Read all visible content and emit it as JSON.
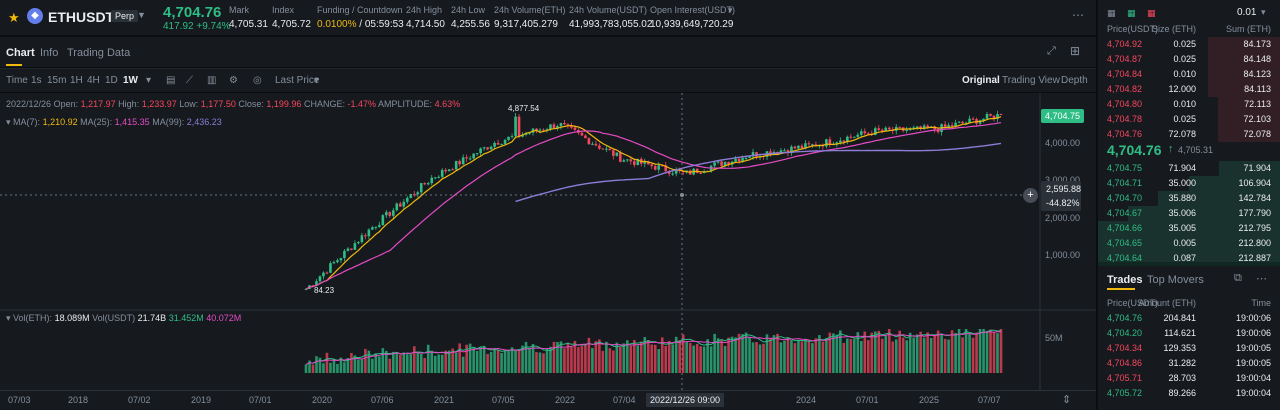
{
  "header": {
    "symbol": "ETHUSDT",
    "contract_badge": "Perp",
    "last_price": "4,704.76",
    "change_line": "417.92 +9.74%",
    "stats": [
      {
        "label": "Mark",
        "value": "4,705.31"
      },
      {
        "label": "Index",
        "value": "4,705.72"
      },
      {
        "label": "Funding / Countdown",
        "value": "0.0100% / 05:59:53"
      },
      {
        "label": "24h High",
        "value": "4,714.50"
      },
      {
        "label": "24h Low",
        "value": "4,255.56"
      },
      {
        "label": "24h Volume(ETH)",
        "value": "9,317,405.279"
      },
      {
        "label": "24h Volume(USDT)",
        "value": "41,993,783,055.02"
      },
      {
        "label": "Open Interest(USDT)",
        "value": "10,939,649,720.29"
      }
    ],
    "funding_rate": "0.0100%",
    "countdown": " / 05:59:53",
    "icons": [
      "star-icon",
      "ethereum-icon",
      "chevron-down-icon",
      "more-icon"
    ]
  },
  "tabs": [
    {
      "label": "Chart",
      "active": true
    },
    {
      "label": "Info",
      "active": false
    },
    {
      "label": "Trading Data",
      "active": false
    }
  ],
  "toolbar": {
    "time_label": "Time",
    "intervals": [
      "1s",
      "15m",
      "1H",
      "4H",
      "1D",
      "1W"
    ],
    "active_interval": "1W",
    "price_type": "Last Price",
    "views": [
      "Original",
      "Trading View",
      "Depth"
    ],
    "active_view": "Original"
  },
  "chart": {
    "ohlc": {
      "date": "2022/12/26",
      "open_label": "Open:",
      "open": "1,217.97",
      "high_label": "High:",
      "high": "1,233.97",
      "low_label": "Low:",
      "low": "1,177.50",
      "close_label": "Close:",
      "close": "1,199.96",
      "change_label": "CHANGE:",
      "change": "-1.47%",
      "amp_label": "AMPLITUDE:",
      "amp": "4.63%"
    },
    "ma": {
      "ma7_label": "MA(7):",
      "ma7": "1,210.92",
      "ma25_label": "MA(25):",
      "ma25": "1,415.35",
      "ma99_label": "MA(99):",
      "ma99": "2,436.23"
    },
    "volume": {
      "label": "Vol(ETH):",
      "value": "18.089M",
      "usdt_label": "Vol(USDT)",
      "usdt": "21.74B",
      "ma1": "31.452M",
      "ma2": "40.072M"
    },
    "price_ticks": [
      "4,000.00",
      "3,000.00",
      "2,000.00",
      "1,000.00"
    ],
    "volume_tick": "50M",
    "high_marker": "4,877.54",
    "low_marker": "84.23",
    "last_price_tag": "4,704.75",
    "crosshair_price": "2,595.88",
    "crosshair_pct": "-44.82%",
    "crosshair_date": "2022/12/26 09:00",
    "time_ticks": [
      "07/03",
      "2018",
      "07/02",
      "2019",
      "07/01",
      "2020",
      "07/06",
      "2021",
      "07/05",
      "2022",
      "07/04",
      "2024",
      "07/01",
      "2025",
      "07/07"
    ]
  },
  "chart_data": {
    "type": "candlestick",
    "x": [
      "2017-07",
      "2018-01",
      "2018-07",
      "2019-01",
      "2019-07",
      "2020-01",
      "2020-07",
      "2021-01",
      "2021-07",
      "2022-01",
      "2022-07",
      "2023-01",
      "2023-07",
      "2024-01",
      "2024-07",
      "2025-01",
      "2025-07"
    ],
    "close": [
      null,
      null,
      null,
      null,
      null,
      130,
      330,
      1100,
      2500,
      3800,
      1700,
      1200,
      1850,
      2300,
      3200,
      3400,
      4704.76
    ],
    "high_marker": 4877.54,
    "low_marker": 84.23,
    "ylim": [
      0,
      5000
    ],
    "scale": "log"
  },
  "orderbook": {
    "tick_size": "0.01",
    "headers": [
      "Price(USDT)",
      "Size (ETH)",
      "Sum (ETH)"
    ],
    "asks": [
      [
        "4,704.92",
        "0.025",
        "84.173"
      ],
      [
        "4,704.87",
        "0.025",
        "84.148"
      ],
      [
        "4,704.84",
        "0.010",
        "84.123"
      ],
      [
        "4,704.82",
        "12.000",
        "84.113"
      ],
      [
        "4,704.80",
        "0.010",
        "72.113"
      ],
      [
        "4,704.78",
        "0.025",
        "72.103"
      ],
      [
        "4,704.76",
        "72.078",
        "72.078"
      ]
    ],
    "mid_price": "4,704.76",
    "mid_arrow": "↑",
    "mid_mark": "4,705.31",
    "bids": [
      [
        "4,704.75",
        "71.904",
        "71.904"
      ],
      [
        "4,704.71",
        "35.000",
        "106.904"
      ],
      [
        "4,704.70",
        "35.880",
        "142.784"
      ],
      [
        "4,704.67",
        "35.006",
        "177.790"
      ],
      [
        "4,704.66",
        "35.005",
        "212.795"
      ],
      [
        "4,704.65",
        "0.005",
        "212.800"
      ],
      [
        "4,704.64",
        "0.087",
        "212.887"
      ]
    ]
  },
  "trades": {
    "tabs": [
      "Trades",
      "Top Movers"
    ],
    "headers": [
      "Price(USDT)",
      "Amount (ETH)",
      "Time"
    ],
    "rows": [
      [
        "4,704.76",
        "204.841",
        "19:00:06",
        "buy"
      ],
      [
        "4,704.20",
        "114.621",
        "19:00:06",
        "buy"
      ],
      [
        "4,704.34",
        "129.353",
        "19:00:05",
        "sell"
      ],
      [
        "4,704.86",
        "31.282",
        "19:00:05",
        "sell"
      ],
      [
        "4,705.71",
        "28.703",
        "19:00:04",
        "sell"
      ],
      [
        "4,705.72",
        "89.266",
        "19:00:04",
        "buy"
      ]
    ]
  },
  "colors": {
    "up": "#2ebd85",
    "down": "#f6465d",
    "accent": "#f0b90b"
  }
}
